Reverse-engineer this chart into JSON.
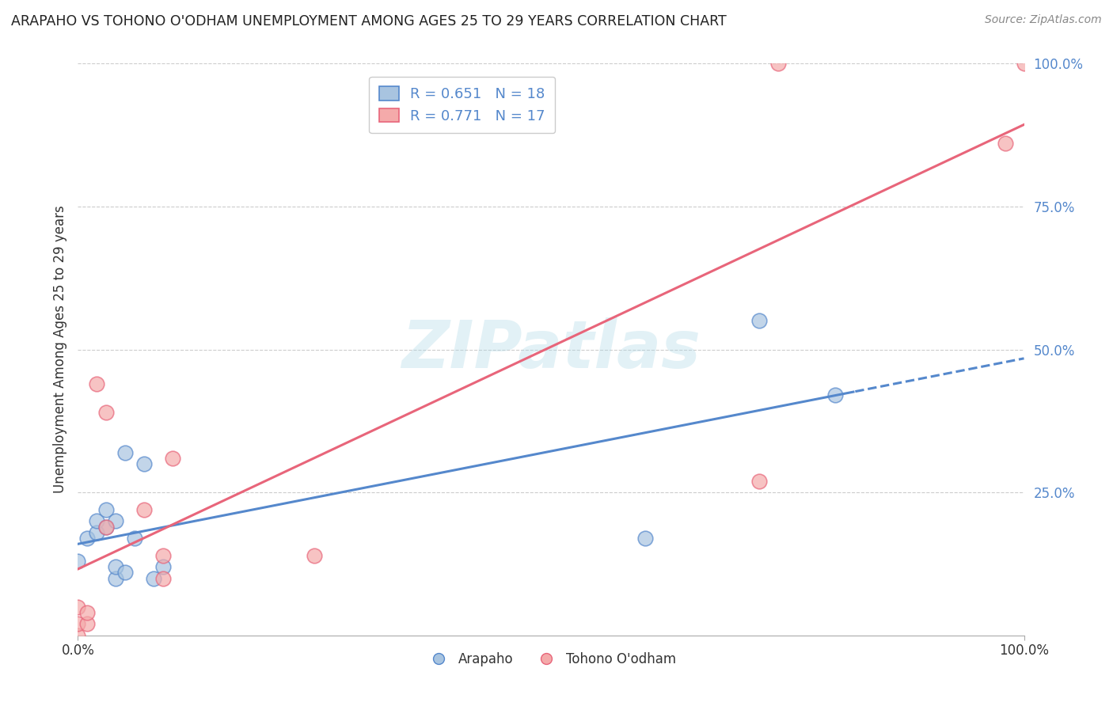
{
  "title": "ARAPAHO VS TOHONO O'ODHAM UNEMPLOYMENT AMONG AGES 25 TO 29 YEARS CORRELATION CHART",
  "source": "Source: ZipAtlas.com",
  "ylabel": "Unemployment Among Ages 25 to 29 years",
  "arapaho_label": "Arapaho",
  "tohono_label": "Tohono O'odham",
  "arapaho_R": 0.651,
  "arapaho_N": 18,
  "tohono_R": 0.771,
  "tohono_N": 17,
  "arapaho_color": "#A8C4E0",
  "tohono_color": "#F4AAAA",
  "arapaho_line_color": "#5588CC",
  "tohono_line_color": "#E8657A",
  "arapaho_scatter_x": [
    0.0,
    0.01,
    0.02,
    0.02,
    0.03,
    0.03,
    0.04,
    0.04,
    0.04,
    0.05,
    0.05,
    0.06,
    0.07,
    0.08,
    0.09,
    0.6,
    0.72,
    0.8
  ],
  "arapaho_scatter_y": [
    0.13,
    0.17,
    0.18,
    0.2,
    0.19,
    0.22,
    0.1,
    0.12,
    0.2,
    0.11,
    0.32,
    0.17,
    0.3,
    0.1,
    0.12,
    0.17,
    0.55,
    0.42
  ],
  "tohono_scatter_x": [
    0.0,
    0.0,
    0.0,
    0.01,
    0.01,
    0.02,
    0.03,
    0.03,
    0.07,
    0.09,
    0.09,
    0.1,
    0.25,
    0.72,
    0.74,
    0.98,
    1.0
  ],
  "tohono_scatter_y": [
    0.0,
    0.02,
    0.05,
    0.02,
    0.04,
    0.44,
    0.39,
    0.19,
    0.22,
    0.1,
    0.14,
    0.31,
    0.14,
    0.27,
    1.0,
    0.86,
    1.0
  ],
  "xlim": [
    0.0,
    1.0
  ],
  "ylim": [
    0.0,
    1.0
  ],
  "xtick_positions": [
    0.0,
    1.0
  ],
  "xtick_labels": [
    "0.0%",
    "100.0%"
  ],
  "ytick_positions": [
    0.25,
    0.5,
    0.75,
    1.0
  ],
  "ytick_labels": [
    "25.0%",
    "50.0%",
    "75.0%",
    "100.0%"
  ],
  "watermark_text": "ZIPatlas",
  "background_color": "#FFFFFF",
  "grid_color": "#CCCCCC",
  "legend_line1": "R = 0.651   N = 18",
  "legend_line2": "R = 0.771   N = 17",
  "dash_split": 0.82
}
